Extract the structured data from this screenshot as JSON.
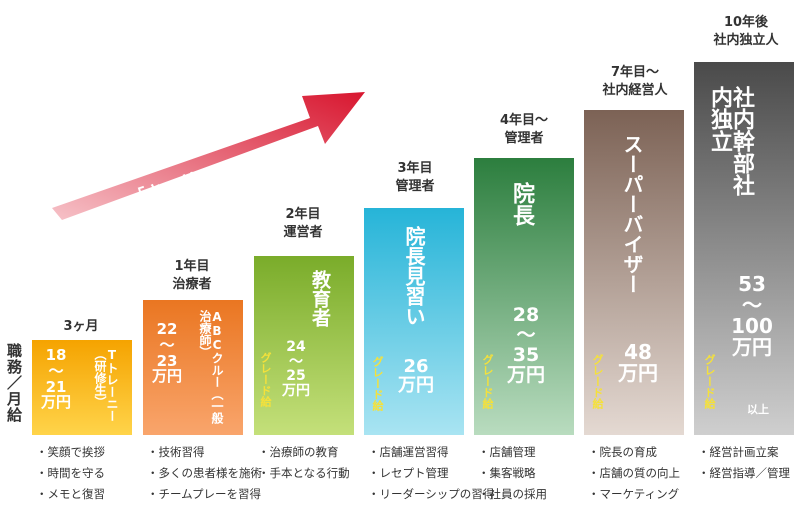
{
  "axis_label": "職務／月給",
  "arrow_label": "「キャリアアップ」制度",
  "colors": {
    "arrow_start": "#f6c2c8",
    "arrow_end": "#d8162f",
    "grade_text": "#f5e13a"
  },
  "stages": [
    {
      "header": [
        "3ヶ月"
      ],
      "title": "Tトレーニー（研修生）",
      "salary": "18〜21万円",
      "grade": "",
      "color_top": "#f5a300",
      "color_bottom": "#ffd44a",
      "duties": [
        "・笑顔で挨拶",
        "・時間を守る",
        "・メモと復習"
      ]
    },
    {
      "header": [
        "1年目",
        "治療者"
      ],
      "title": "ABCクルー（一般治療師）",
      "salary": "22〜23万円",
      "grade": "",
      "color_top": "#ea7621",
      "color_bottom": "#f9a56c",
      "duties": [
        "・技術習得",
        "・多くの患者様を施術",
        "・チームプレーを習得"
      ]
    },
    {
      "header": [
        "2年目",
        "運営者"
      ],
      "title": "教育者",
      "salary": "24〜25万円",
      "grade": "グレード給",
      "color_top": "#7aac2a",
      "color_bottom": "#c4e07a",
      "duties": [
        "・治療師の教育",
        "・手本となる行動"
      ]
    },
    {
      "header": [
        "3年目",
        "管理者"
      ],
      "title": "院長見習い",
      "salary": "26万円",
      "grade": "グレード給",
      "color_top": "#26b4d8",
      "color_bottom": "#a9e4f2",
      "duties": [
        "・店舗運営習得",
        "・レセプト管理",
        "・リーダーシップの習得"
      ]
    },
    {
      "header": [
        "4年目〜",
        "管理者"
      ],
      "title": "院長",
      "salary": "28〜35万円",
      "grade": "グレード給",
      "color_top": "#2c7e3e",
      "color_bottom": "#b9dcbf",
      "duties": [
        "・店舗管理",
        "・集客戦略",
        "・社員の採用"
      ]
    },
    {
      "header": [
        "7年目〜",
        "社内経営人"
      ],
      "title": "スーパーバイザー",
      "salary": "48万円",
      "grade": "グレード給",
      "color_top": "#7c6255",
      "color_bottom": "#e4d9d2",
      "duties": [
        "・院長の育成",
        "・店舗の質の向上",
        "・マーケティング"
      ]
    },
    {
      "header": [
        "10年後",
        "社内独立人"
      ],
      "title": "社内幹部社内独立",
      "salary": "53〜100万円",
      "salary_suffix": "以上",
      "grade": "グレード給",
      "color_top": "#4a4a4a",
      "color_bottom": "#cfcfcf",
      "duties": [
        "・経営計画立案",
        "・経営指導／管理"
      ]
    }
  ]
}
